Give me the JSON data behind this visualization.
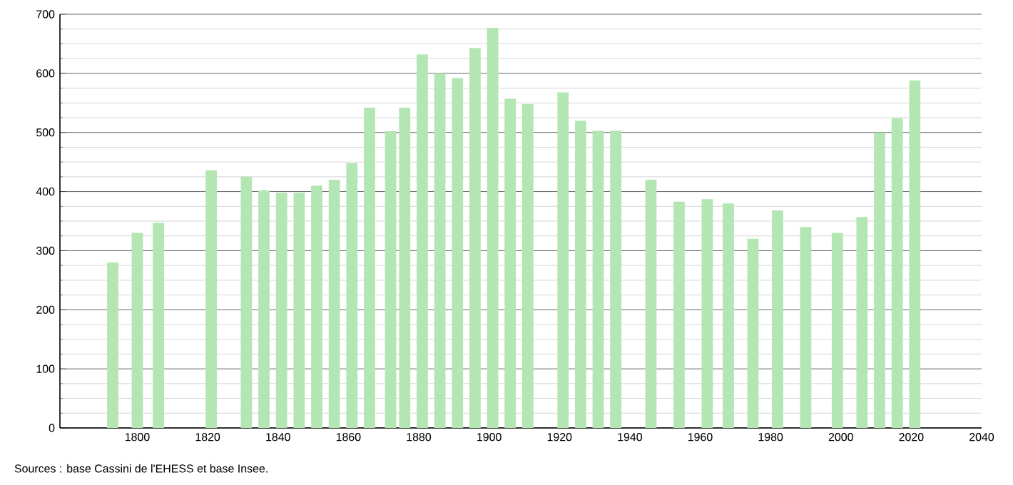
{
  "chart_data": {
    "type": "bar",
    "color": "#b3e6b3",
    "x": [
      1793,
      1800,
      1806,
      1821,
      1831,
      1836,
      1841,
      1846,
      1851,
      1856,
      1861,
      1866,
      1872,
      1876,
      1881,
      1886,
      1891,
      1896,
      1901,
      1906,
      1911,
      1921,
      1926,
      1931,
      1936,
      1946,
      1954,
      1962,
      1968,
      1975,
      1982,
      1990,
      1999,
      2006,
      2011,
      2016,
      2021
    ],
    "values": [
      280,
      330,
      347,
      436,
      425,
      402,
      398,
      398,
      410,
      420,
      448,
      542,
      502,
      542,
      632,
      600,
      592,
      643,
      677,
      557,
      548,
      568,
      520,
      503,
      503,
      420,
      383,
      387,
      380,
      320,
      368,
      340,
      330,
      357,
      500,
      524,
      588
    ],
    "xlim": [
      1778,
      2040
    ],
    "xticks": [
      1800,
      1820,
      1840,
      1860,
      1880,
      1900,
      1920,
      1940,
      1960,
      1980,
      2000,
      2020,
      2040
    ],
    "ylim": [
      0,
      700
    ],
    "yticks": [
      0,
      100,
      200,
      300,
      400,
      500,
      600,
      700
    ],
    "grid": "y",
    "annotations": [
      "Sources : base Cassini de l'EHESS et base Insee."
    ]
  }
}
